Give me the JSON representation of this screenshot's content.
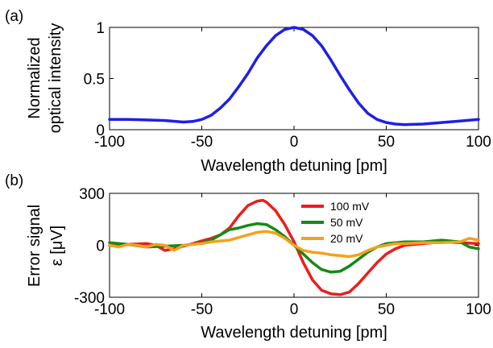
{
  "chart_data": [
    {
      "type": "line",
      "panel_label": "(a)",
      "xlabel": "Wavelength detuning [pm]",
      "ylabel": [
        "Normalized",
        "optical intensity"
      ],
      "xlim": [
        -100,
        100
      ],
      "ylim": [
        0,
        1
      ],
      "xticks": [
        "-100",
        "-50",
        "0",
        "50",
        "100"
      ],
      "yticks": [
        "0",
        "0.5",
        "1"
      ],
      "series": [
        {
          "color": "#1f1fe6",
          "x": [
            -100,
            -90,
            -80,
            -70,
            -60,
            -55,
            -50,
            -45,
            -40,
            -35,
            -30,
            -25,
            -20,
            -15,
            -10,
            -5,
            0,
            5,
            10,
            15,
            20,
            25,
            30,
            35,
            40,
            45,
            50,
            55,
            60,
            70,
            80,
            90,
            100
          ],
          "y": [
            0.1,
            0.1,
            0.095,
            0.09,
            0.075,
            0.08,
            0.1,
            0.14,
            0.21,
            0.3,
            0.42,
            0.55,
            0.7,
            0.82,
            0.92,
            0.98,
            1.0,
            0.98,
            0.92,
            0.82,
            0.68,
            0.53,
            0.39,
            0.26,
            0.16,
            0.1,
            0.07,
            0.055,
            0.05,
            0.055,
            0.07,
            0.085,
            0.1
          ]
        }
      ]
    },
    {
      "type": "line",
      "panel_label": "(b)",
      "xlabel": "Wavelength detuning [pm]",
      "ylabel": [
        "Error signal",
        "ε [μV]"
      ],
      "xlim": [
        -100,
        100
      ],
      "ylim": [
        -300,
        300
      ],
      "xticks": [
        "-100",
        "-50",
        "0",
        "50",
        "100"
      ],
      "yticks": [
        "-300",
        "0",
        "300"
      ],
      "legend_position": "top-center",
      "series": [
        {
          "name": "100 mV",
          "color": "#ee1c1c",
          "x": [
            -100,
            -90,
            -80,
            -75,
            -70,
            -65,
            -60,
            -55,
            -50,
            -45,
            -40,
            -35,
            -30,
            -25,
            -20,
            -17,
            -15,
            -10,
            -5,
            0,
            5,
            10,
            15,
            20,
            25,
            30,
            35,
            40,
            45,
            50,
            55,
            60,
            70,
            80,
            90,
            100
          ],
          "y": [
            0,
            5,
            10,
            0,
            -30,
            -20,
            -5,
            10,
            25,
            40,
            60,
            100,
            170,
            230,
            255,
            260,
            250,
            200,
            120,
            20,
            -100,
            -200,
            -260,
            -280,
            -285,
            -270,
            -220,
            -160,
            -100,
            -50,
            -20,
            0,
            10,
            20,
            15,
            10
          ]
        },
        {
          "name": "50 mV",
          "color": "#158a15",
          "x": [
            -100,
            -90,
            -80,
            -70,
            -60,
            -55,
            -50,
            -45,
            -40,
            -35,
            -30,
            -25,
            -20,
            -15,
            -10,
            -5,
            0,
            5,
            10,
            15,
            20,
            25,
            30,
            35,
            40,
            45,
            50,
            60,
            70,
            80,
            90,
            95,
            100
          ],
          "y": [
            15,
            5,
            -10,
            -5,
            0,
            5,
            15,
            30,
            60,
            90,
            100,
            115,
            125,
            120,
            90,
            50,
            0,
            -50,
            -100,
            -140,
            -155,
            -150,
            -120,
            -80,
            -40,
            -10,
            10,
            20,
            20,
            30,
            20,
            -10,
            -20
          ]
        },
        {
          "name": "20 mV",
          "color": "#f5a020",
          "x": [
            -100,
            -95,
            -90,
            -85,
            -80,
            -75,
            -70,
            -65,
            -60,
            -55,
            -50,
            -45,
            -40,
            -35,
            -30,
            -25,
            -20,
            -15,
            -10,
            -5,
            0,
            5,
            10,
            15,
            20,
            25,
            30,
            35,
            40,
            45,
            50,
            55,
            60,
            70,
            80,
            90,
            95,
            100
          ],
          "y": [
            0,
            -10,
            5,
            0,
            -10,
            5,
            0,
            -30,
            0,
            5,
            10,
            20,
            25,
            30,
            45,
            60,
            75,
            80,
            70,
            40,
            0,
            -30,
            -40,
            -45,
            -55,
            -60,
            -65,
            -55,
            -30,
            -10,
            0,
            10,
            10,
            15,
            15,
            20,
            40,
            30
          ]
        }
      ]
    }
  ]
}
